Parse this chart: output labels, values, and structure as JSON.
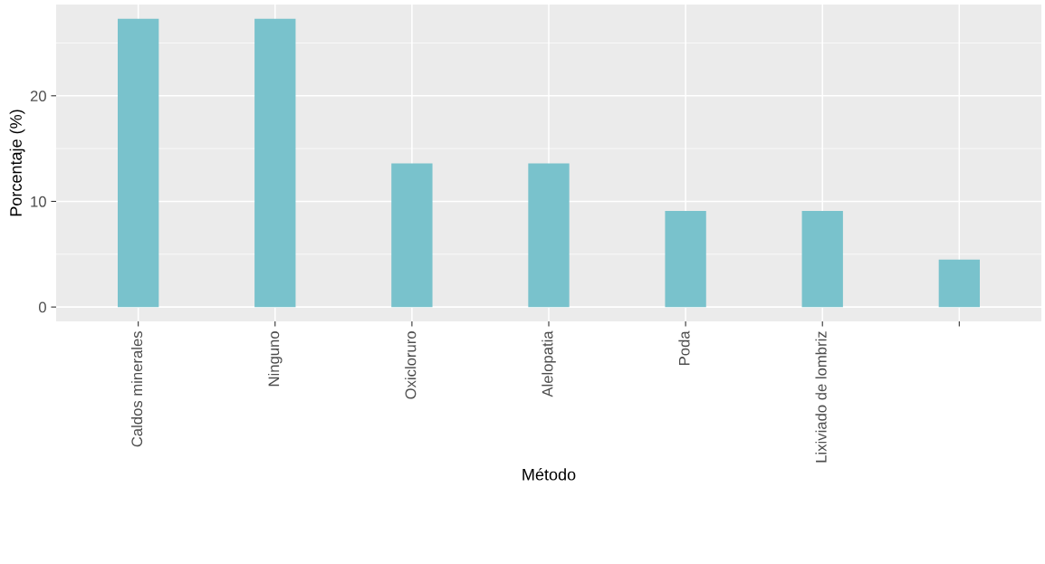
{
  "chart_data": {
    "type": "bar",
    "xlabel": "Método",
    "ylabel": "Porcentaje (%)",
    "categories": [
      "Caldos minerales",
      "Ninguno",
      "Oxicloruro",
      "Alelopatia",
      "Poda",
      "Lixiviado de lombriz",
      null
    ],
    "values": [
      27.3,
      27.3,
      13.6,
      13.6,
      9.1,
      9.1,
      4.5
    ],
    "color": "#79c2cc",
    "ylim": [
      -1.36,
      28.64
    ],
    "yticks": [
      0,
      10,
      20
    ],
    "grid": true
  }
}
